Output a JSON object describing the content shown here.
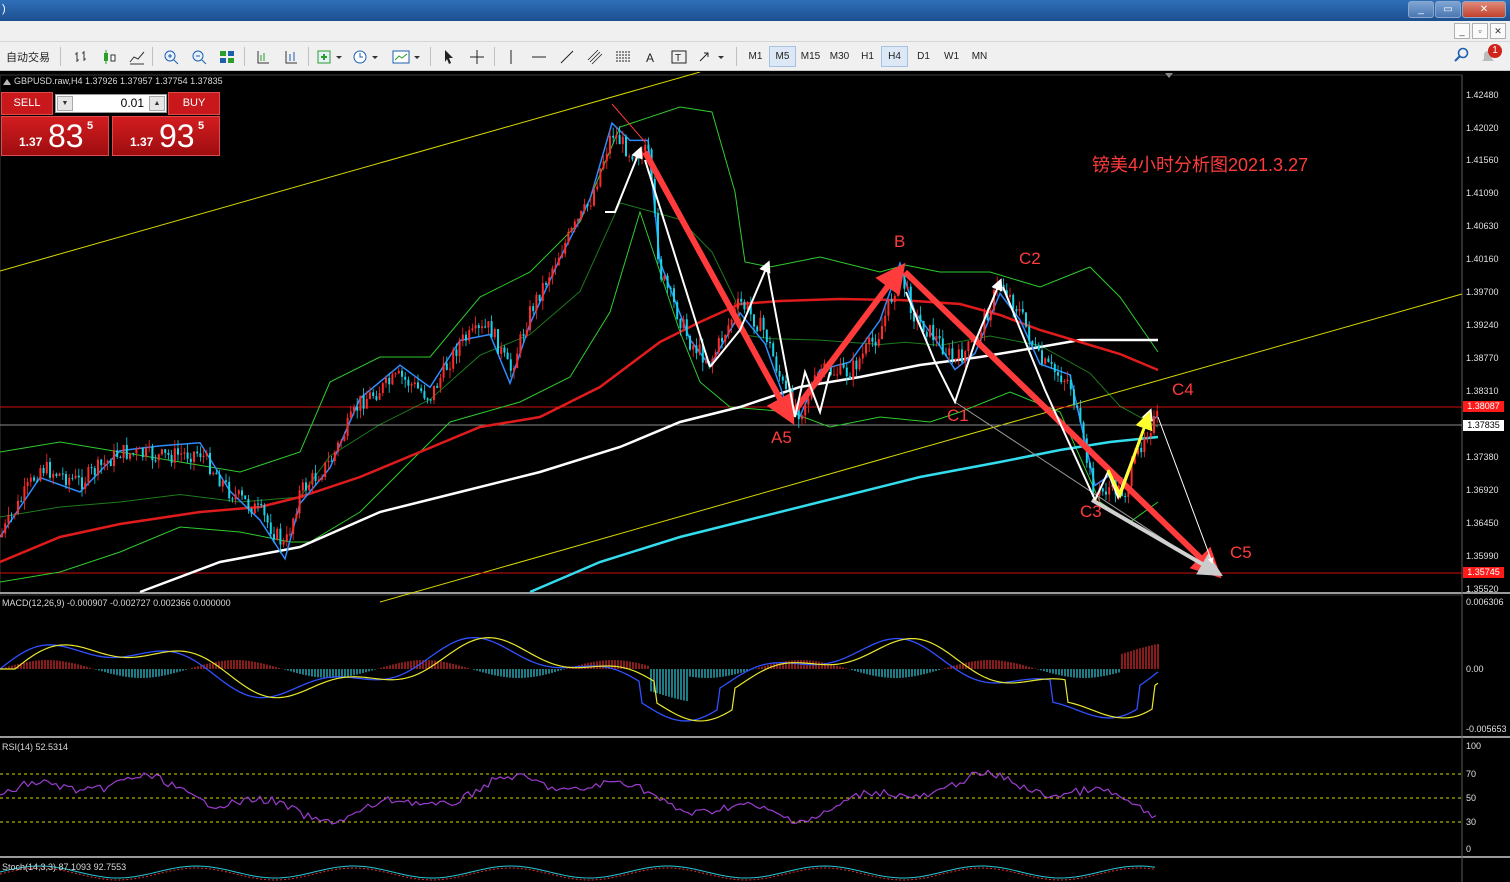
{
  "window": {
    "title": ")",
    "buttons": [
      "_",
      "▭",
      "✕"
    ]
  },
  "toolbar": {
    "autotrade_label": "自动交易",
    "timeframes": [
      "M1",
      "M5",
      "M15",
      "M30",
      "H1",
      "H4",
      "D1",
      "W1",
      "MN"
    ],
    "active_timeframe": "H4",
    "notification_count": "1"
  },
  "chart": {
    "symbol_header": "GBPUSD.raw,H4  1.37926 1.37957 1.37754 1.37835",
    "title_annotation": "镑美4小时分析图2021.3.27",
    "wave_labels": [
      "A5",
      "B",
      "C1",
      "C2",
      "C3",
      "C4",
      "C5"
    ],
    "price_axis": [
      "1.42480",
      "1.42020",
      "1.41560",
      "1.41090",
      "1.40630",
      "1.40160",
      "1.39700",
      "1.39240",
      "1.38770",
      "1.38310",
      "1.37380",
      "1.36920",
      "1.36450",
      "1.35990",
      "1.35520"
    ],
    "price_tags": {
      "resistance": "1.38087",
      "current": "1.37835",
      "support": "1.35745"
    }
  },
  "one_click": {
    "sell_label": "SELL",
    "buy_label": "BUY",
    "lot": "0.01",
    "sell_prefix": "1.37",
    "sell_big": "83",
    "sell_sup": "5",
    "buy_prefix": "1.37",
    "buy_big": "93",
    "buy_sup": "5"
  },
  "indicators": {
    "macd": {
      "label": "MACD(12,26,9) -0.000907 -0.002727 0.002366 0.000000",
      "axis": [
        "0.006306",
        "0.00",
        "-0.005653"
      ]
    },
    "rsi": {
      "label": "RSI(14) 52.5314",
      "axis": [
        "100",
        "70",
        "50",
        "30",
        "0"
      ]
    },
    "stoch": {
      "label": "Stoch(14,3,3) 87.1093 92.7553"
    }
  },
  "colors": {
    "background": "#000000",
    "candle_up": "#ff2a2a",
    "candle_down": "#19d2e6",
    "bollinger": "#2ecc2e",
    "ma_fast": "#2f8cff",
    "ma_red": "#e01b1b",
    "ma_white": "#ffffff",
    "ma_cyan": "#33ddee",
    "channel": "#d9d900",
    "annotation": "#ff3b3b",
    "wave_arrow": "#ff3b3b"
  }
}
